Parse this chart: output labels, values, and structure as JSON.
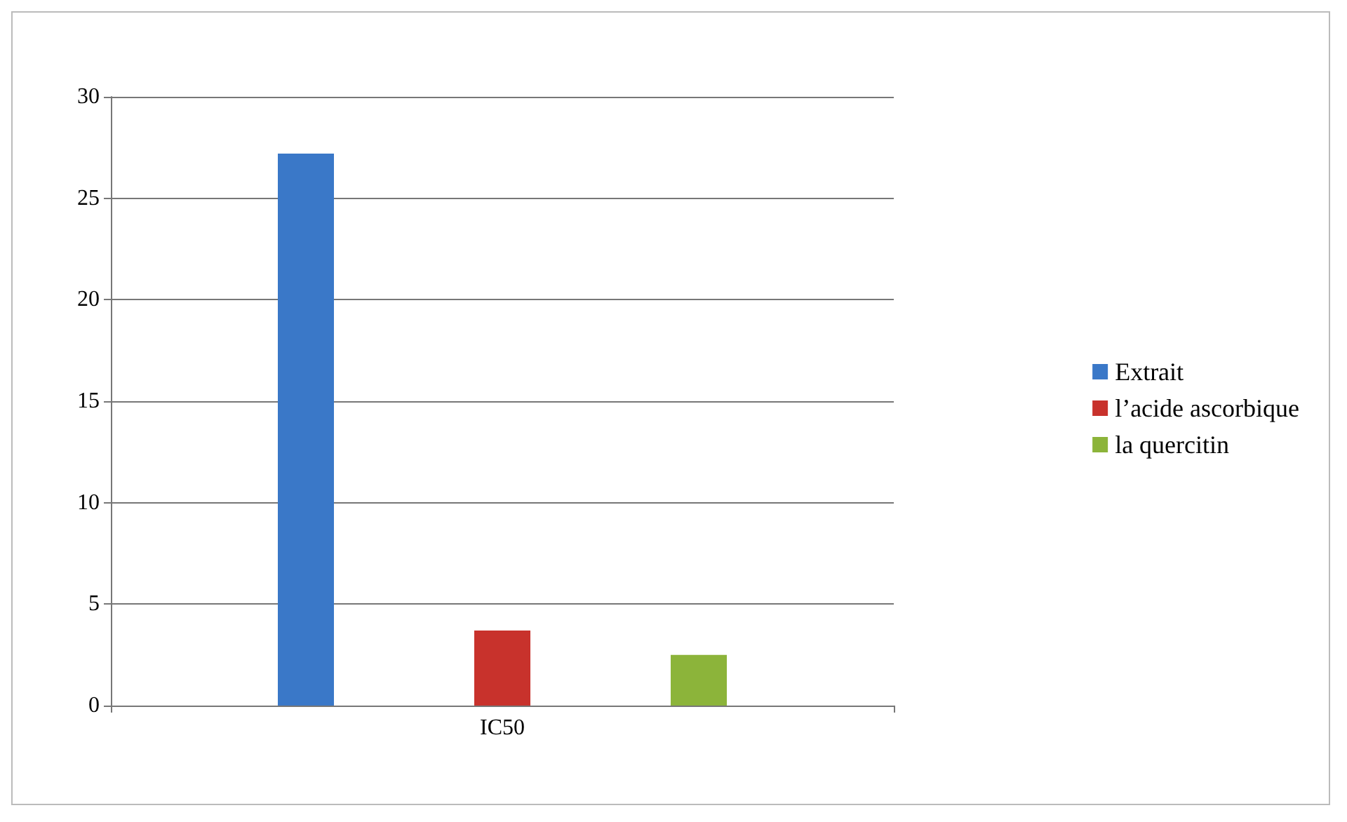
{
  "chart_data": {
    "type": "bar",
    "categories": [
      "IC50"
    ],
    "series": [
      {
        "name": "Extrait",
        "color": "#3a78c8",
        "values": [
          27.2
        ]
      },
      {
        "name": "l’acide ascorbique",
        "color": "#c8322c",
        "values": [
          3.7
        ]
      },
      {
        "name": "la quercitin",
        "color": "#8cb43a",
        "values": [
          2.5
        ]
      }
    ],
    "ylim": [
      0,
      30
    ],
    "yticks": [
      0,
      5,
      10,
      15,
      20,
      25,
      30
    ],
    "grid": "y",
    "legend": "right"
  }
}
